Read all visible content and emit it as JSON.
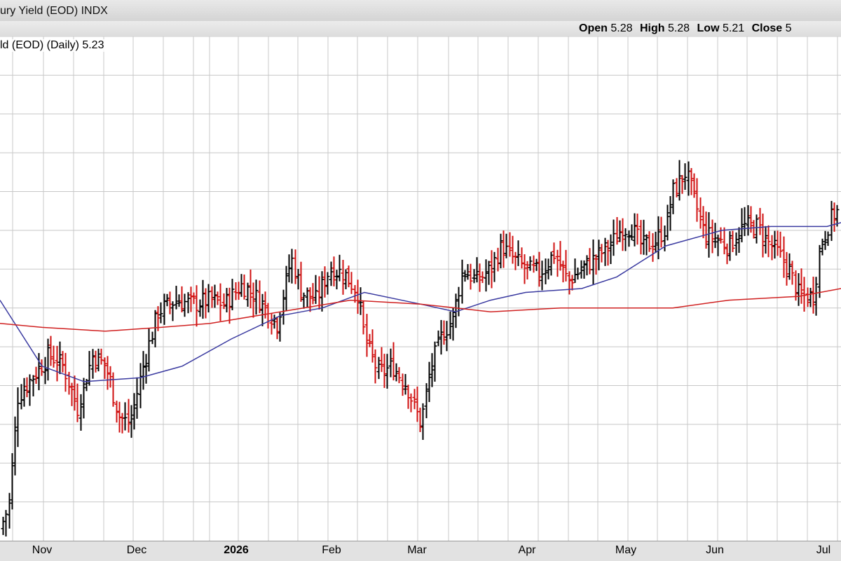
{
  "header": {
    "title": "ury Yield (EOD) INDX",
    "open_label": "Open",
    "open": "5.28",
    "high_label": "High",
    "high": "5.28",
    "low_label": "Low",
    "low": "5.21",
    "close_label": "Close",
    "close": "5"
  },
  "legend": {
    "text": "ld (EOD) (Daily) 5.23"
  },
  "colors": {
    "up": "#000000",
    "down": "#d01010",
    "ma_short": "#3a3aa0",
    "ma_long": "#d02020",
    "grid": "#c8c8c8",
    "plot_bg": "#ffffff"
  },
  "x_labels": [
    {
      "text": "Nov",
      "bold": false
    },
    {
      "text": "Dec",
      "bold": false
    },
    {
      "text": "2026",
      "bold": true
    },
    {
      "text": "Feb",
      "bold": false
    },
    {
      "text": "Mar",
      "bold": false
    },
    {
      "text": "Apr",
      "bold": false
    },
    {
      "text": "May",
      "bold": false
    },
    {
      "text": "Jun",
      "bold": false
    },
    {
      "text": "Jul",
      "bold": false
    }
  ],
  "chart_data": {
    "type": "ohlc",
    "title": "",
    "grid": true,
    "ylim": [
      4.1,
      5.4
    ],
    "categories": [
      "Nov",
      "Dec",
      "2026",
      "Feb",
      "Mar",
      "Apr",
      "May",
      "Jun",
      "Jul"
    ],
    "close_points": [
      [
        0,
        4.13
      ],
      [
        12,
        4.19
      ],
      [
        25,
        4.47
      ],
      [
        45,
        4.52
      ],
      [
        70,
        4.58
      ],
      [
        90,
        4.55
      ],
      [
        110,
        4.44
      ],
      [
        132,
        4.58
      ],
      [
        150,
        4.55
      ],
      [
        170,
        4.42
      ],
      [
        185,
        4.4
      ],
      [
        205,
        4.56
      ],
      [
        225,
        4.69
      ],
      [
        250,
        4.72
      ],
      [
        275,
        4.71
      ],
      [
        300,
        4.72
      ],
      [
        320,
        4.71
      ],
      [
        345,
        4.76
      ],
      [
        370,
        4.72
      ],
      [
        395,
        4.66
      ],
      [
        415,
        4.83
      ],
      [
        430,
        4.74
      ],
      [
        450,
        4.72
      ],
      [
        470,
        4.8
      ],
      [
        490,
        4.79
      ],
      [
        510,
        4.74
      ],
      [
        520,
        4.62
      ],
      [
        540,
        4.53
      ],
      [
        560,
        4.55
      ],
      [
        580,
        4.5
      ],
      [
        600,
        4.4
      ],
      [
        615,
        4.55
      ],
      [
        630,
        4.63
      ],
      [
        645,
        4.67
      ],
      [
        660,
        4.8
      ],
      [
        680,
        4.77
      ],
      [
        700,
        4.8
      ],
      [
        715,
        4.86
      ],
      [
        730,
        4.83
      ],
      [
        750,
        4.8
      ],
      [
        770,
        4.79
      ],
      [
        790,
        4.84
      ],
      [
        810,
        4.77
      ],
      [
        830,
        4.8
      ],
      [
        850,
        4.83
      ],
      [
        870,
        4.86
      ],
      [
        885,
        4.9
      ],
      [
        900,
        4.91
      ],
      [
        915,
        4.86
      ],
      [
        935,
        4.87
      ],
      [
        950,
        4.91
      ],
      [
        960,
        5.0
      ],
      [
        978,
        5.05
      ],
      [
        990,
        4.98
      ],
      [
        1005,
        4.89
      ],
      [
        1020,
        4.88
      ],
      [
        1040,
        4.86
      ],
      [
        1060,
        4.91
      ],
      [
        1080,
        4.91
      ],
      [
        1095,
        4.87
      ],
      [
        1110,
        4.84
      ],
      [
        1125,
        4.8
      ],
      [
        1140,
        4.73
      ],
      [
        1160,
        4.73
      ],
      [
        1170,
        4.86
      ],
      [
        1185,
        4.93
      ],
      [
        1200,
        4.96
      ]
    ],
    "series": [
      {
        "name": "",
        "values": [
          [
            0,
            4.72
          ],
          [
            60,
            4.55
          ],
          [
            120,
            4.51
          ],
          [
            200,
            4.52
          ],
          [
            260,
            4.55
          ],
          [
            330,
            4.62
          ],
          [
            400,
            4.68
          ],
          [
            460,
            4.7
          ],
          [
            520,
            4.74
          ],
          [
            600,
            4.71
          ],
          [
            650,
            4.69
          ],
          [
            700,
            4.72
          ],
          [
            750,
            4.74
          ],
          [
            830,
            4.75
          ],
          [
            880,
            4.78
          ],
          [
            950,
            4.86
          ],
          [
            1030,
            4.9
          ],
          [
            1100,
            4.91
          ],
          [
            1180,
            4.91
          ],
          [
            1200,
            4.92
          ]
        ]
      },
      {
        "name": "",
        "values": [
          [
            0,
            4.66
          ],
          [
            60,
            4.65
          ],
          [
            150,
            4.64
          ],
          [
            230,
            4.65
          ],
          [
            300,
            4.66
          ],
          [
            400,
            4.69
          ],
          [
            500,
            4.72
          ],
          [
            600,
            4.71
          ],
          [
            700,
            4.69
          ],
          [
            800,
            4.7
          ],
          [
            900,
            4.7
          ],
          [
            960,
            4.7
          ],
          [
            1040,
            4.72
          ],
          [
            1140,
            4.73
          ],
          [
            1200,
            4.75
          ]
        ]
      }
    ]
  }
}
